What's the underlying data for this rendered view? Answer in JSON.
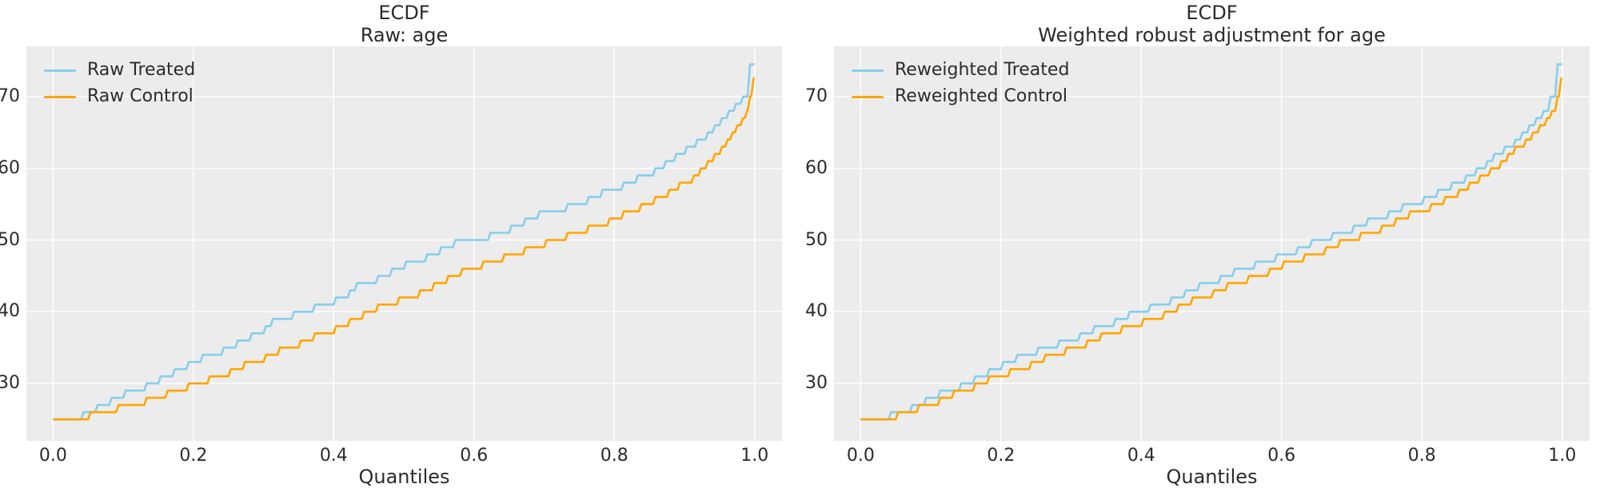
{
  "figure": {
    "background": "#ffffff",
    "plot_background": "#ececec",
    "grid_color": "#ffffff",
    "text_color": "#2b2b2b",
    "treated_color": "#87CEEB",
    "control_color": "#FFA500"
  },
  "chart_data": [
    {
      "type": "line",
      "subtype": "quantile-step",
      "title": "ECDF",
      "subtitle": "Raw: age",
      "xlabel": "Quantiles",
      "ylabel": "",
      "grid": true,
      "legend_position": "upper left",
      "xlim": [
        -0.038,
        1.039
      ],
      "ylim": [
        22,
        77
      ],
      "x_ticks": [
        0,
        0.2,
        0.4,
        0.6,
        0.8,
        1.0
      ],
      "x_tick_labels": [
        "0.0",
        "0.2",
        "0.4",
        "0.6",
        "0.8",
        "1.0"
      ],
      "y_ticks": [
        30,
        40,
        50,
        60,
        70
      ],
      "y_tick_labels": [
        "30",
        "40",
        "50",
        "60",
        "70"
      ],
      "series": [
        {
          "name": "Raw Treated",
          "color": "#87CEEB",
          "steps": [
            [
              0,
              25
            ],
            [
              0.04,
              26
            ],
            [
              0.06,
              27
            ],
            [
              0.08,
              28
            ],
            [
              0.1,
              29
            ],
            [
              0.13,
              30
            ],
            [
              0.15,
              31
            ],
            [
              0.17,
              32
            ],
            [
              0.19,
              33
            ],
            [
              0.21,
              34
            ],
            [
              0.24,
              35
            ],
            [
              0.26,
              36
            ],
            [
              0.28,
              37
            ],
            [
              0.3,
              38
            ],
            [
              0.31,
              39
            ],
            [
              0.34,
              40
            ],
            [
              0.37,
              41
            ],
            [
              0.4,
              42
            ],
            [
              0.42,
              43
            ],
            [
              0.43,
              44
            ],
            [
              0.46,
              45
            ],
            [
              0.48,
              46
            ],
            [
              0.5,
              47
            ],
            [
              0.53,
              48
            ],
            [
              0.55,
              49
            ],
            [
              0.57,
              50
            ],
            [
              0.62,
              51
            ],
            [
              0.65,
              52
            ],
            [
              0.67,
              53
            ],
            [
              0.69,
              54
            ],
            [
              0.73,
              55
            ],
            [
              0.76,
              56
            ],
            [
              0.78,
              57
            ],
            [
              0.81,
              58
            ],
            [
              0.83,
              59
            ],
            [
              0.855,
              60
            ],
            [
              0.87,
              61
            ],
            [
              0.885,
              62
            ],
            [
              0.9,
              63
            ],
            [
              0.915,
              64
            ],
            [
              0.93,
              65
            ],
            [
              0.94,
              66
            ],
            [
              0.95,
              67
            ],
            [
              0.96,
              68
            ],
            [
              0.97,
              69
            ],
            [
              0.98,
              70
            ],
            [
              0.99,
              74.5
            ]
          ]
        },
        {
          "name": "Raw Control",
          "color": "#FFA500",
          "steps": [
            [
              0,
              25
            ],
            [
              0.05,
              26
            ],
            [
              0.09,
              27
            ],
            [
              0.13,
              28
            ],
            [
              0.16,
              29
            ],
            [
              0.19,
              30
            ],
            [
              0.22,
              31
            ],
            [
              0.25,
              32
            ],
            [
              0.27,
              33
            ],
            [
              0.3,
              34
            ],
            [
              0.32,
              35
            ],
            [
              0.35,
              36
            ],
            [
              0.37,
              37
            ],
            [
              0.4,
              38
            ],
            [
              0.42,
              39
            ],
            [
              0.44,
              40
            ],
            [
              0.46,
              41
            ],
            [
              0.49,
              42
            ],
            [
              0.52,
              43
            ],
            [
              0.54,
              44
            ],
            [
              0.56,
              45
            ],
            [
              0.58,
              46
            ],
            [
              0.61,
              47
            ],
            [
              0.64,
              48
            ],
            [
              0.67,
              49
            ],
            [
              0.7,
              50
            ],
            [
              0.73,
              51
            ],
            [
              0.76,
              52
            ],
            [
              0.79,
              53
            ],
            [
              0.81,
              54
            ],
            [
              0.835,
              55
            ],
            [
              0.855,
              56
            ],
            [
              0.875,
              57
            ],
            [
              0.89,
              58
            ],
            [
              0.91,
              59
            ],
            [
              0.92,
              60
            ],
            [
              0.93,
              61
            ],
            [
              0.94,
              62
            ],
            [
              0.95,
              63
            ],
            [
              0.958,
              64
            ],
            [
              0.965,
              65
            ],
            [
              0.972,
              66
            ],
            [
              0.98,
              67
            ],
            [
              0.986,
              68
            ],
            [
              0.99,
              70
            ],
            [
              0.995,
              72.5
            ]
          ]
        }
      ]
    },
    {
      "type": "line",
      "subtype": "quantile-step",
      "title": "ECDF",
      "subtitle": "Weighted robust adjustment for age",
      "xlabel": "Quantiles",
      "ylabel": "",
      "grid": true,
      "legend_position": "upper left",
      "xlim": [
        -0.038,
        1.039
      ],
      "ylim": [
        22,
        77
      ],
      "x_ticks": [
        0,
        0.2,
        0.4,
        0.6,
        0.8,
        1.0
      ],
      "x_tick_labels": [
        "0.0",
        "0.2",
        "0.4",
        "0.6",
        "0.8",
        "1.0"
      ],
      "y_ticks": [
        30,
        40,
        50,
        60,
        70
      ],
      "y_tick_labels": [
        "30",
        "40",
        "50",
        "60",
        "70"
      ],
      "series": [
        {
          "name": "Reweighted Treated",
          "color": "#87CEEB",
          "steps": [
            [
              0,
              25
            ],
            [
              0.04,
              26
            ],
            [
              0.07,
              27
            ],
            [
              0.09,
              28
            ],
            [
              0.11,
              29
            ],
            [
              0.14,
              30
            ],
            [
              0.16,
              31
            ],
            [
              0.18,
              32
            ],
            [
              0.2,
              33
            ],
            [
              0.22,
              34
            ],
            [
              0.25,
              35
            ],
            [
              0.28,
              36
            ],
            [
              0.31,
              37
            ],
            [
              0.33,
              38
            ],
            [
              0.36,
              39
            ],
            [
              0.38,
              40
            ],
            [
              0.41,
              41
            ],
            [
              0.44,
              42
            ],
            [
              0.46,
              43
            ],
            [
              0.48,
              44
            ],
            [
              0.51,
              45
            ],
            [
              0.53,
              46
            ],
            [
              0.56,
              47
            ],
            [
              0.59,
              48
            ],
            [
              0.62,
              49
            ],
            [
              0.64,
              50
            ],
            [
              0.67,
              51
            ],
            [
              0.7,
              52
            ],
            [
              0.72,
              53
            ],
            [
              0.75,
              54
            ],
            [
              0.77,
              55
            ],
            [
              0.8,
              56
            ],
            [
              0.82,
              57
            ],
            [
              0.84,
              58
            ],
            [
              0.86,
              59
            ],
            [
              0.875,
              60
            ],
            [
              0.89,
              61
            ],
            [
              0.9,
              62
            ],
            [
              0.915,
              63
            ],
            [
              0.93,
              64
            ],
            [
              0.94,
              65
            ],
            [
              0.95,
              66
            ],
            [
              0.96,
              67
            ],
            [
              0.97,
              68
            ],
            [
              0.98,
              70
            ],
            [
              0.99,
              74.5
            ]
          ]
        },
        {
          "name": "Reweighted Control",
          "color": "#FFA500",
          "steps": [
            [
              0,
              25
            ],
            [
              0.05,
              26
            ],
            [
              0.08,
              27
            ],
            [
              0.11,
              28
            ],
            [
              0.13,
              29
            ],
            [
              0.16,
              30
            ],
            [
              0.18,
              31
            ],
            [
              0.21,
              32
            ],
            [
              0.24,
              33
            ],
            [
              0.26,
              34
            ],
            [
              0.29,
              35
            ],
            [
              0.32,
              36
            ],
            [
              0.34,
              37
            ],
            [
              0.37,
              38
            ],
            [
              0.4,
              39
            ],
            [
              0.43,
              40
            ],
            [
              0.45,
              41
            ],
            [
              0.47,
              42
            ],
            [
              0.5,
              43
            ],
            [
              0.52,
              44
            ],
            [
              0.55,
              45
            ],
            [
              0.58,
              46
            ],
            [
              0.6,
              47
            ],
            [
              0.63,
              48
            ],
            [
              0.66,
              49
            ],
            [
              0.68,
              50
            ],
            [
              0.71,
              51
            ],
            [
              0.74,
              52
            ],
            [
              0.76,
              53
            ],
            [
              0.78,
              54
            ],
            [
              0.81,
              55
            ],
            [
              0.83,
              56
            ],
            [
              0.85,
              57
            ],
            [
              0.865,
              58
            ],
            [
              0.88,
              59
            ],
            [
              0.895,
              60
            ],
            [
              0.91,
              61
            ],
            [
              0.92,
              62
            ],
            [
              0.93,
              63
            ],
            [
              0.945,
              64
            ],
            [
              0.955,
              65
            ],
            [
              0.965,
              66
            ],
            [
              0.975,
              67
            ],
            [
              0.982,
              68
            ],
            [
              0.99,
              70
            ],
            [
              0.995,
              72.5
            ]
          ]
        }
      ]
    }
  ]
}
